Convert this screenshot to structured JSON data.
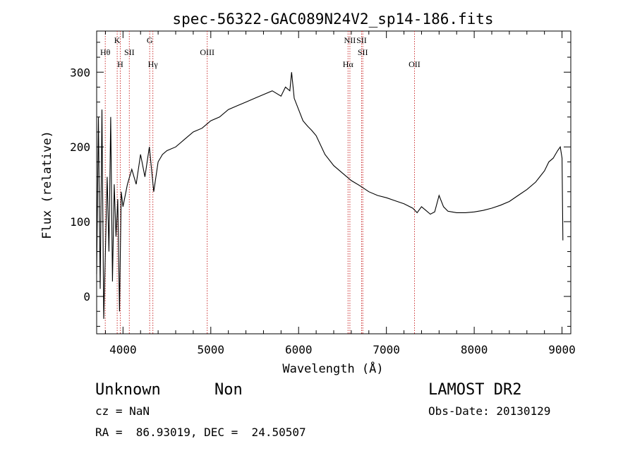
{
  "chart_data": {
    "type": "line",
    "title": "spec-56322-GAC089N24V2_sp14-186.fits",
    "xlabel": "Wavelength (Å)",
    "ylabel": "Flux (relative)",
    "xlim": [
      3700,
      9100
    ],
    "ylim": [
      -50,
      355
    ],
    "xticks": [
      4000,
      5000,
      6000,
      7000,
      8000,
      9000
    ],
    "yticks": [
      0,
      100,
      200,
      300
    ],
    "grid": false,
    "line_color": "#000000",
    "marker_color": "#cc3333",
    "series": [
      {
        "x": [
          3700,
          3720,
          3740,
          3760,
          3780,
          3800,
          3820,
          3840,
          3860,
          3880,
          3900,
          3920,
          3940,
          3960,
          3980,
          4000,
          4050,
          4100,
          4150,
          4200,
          4250,
          4300,
          4350,
          4400,
          4450,
          4500,
          4600,
          4700,
          4800,
          4900,
          5000,
          5100,
          5200,
          5300,
          5400,
          5500,
          5600,
          5700,
          5800,
          5850,
          5900,
          5920,
          5950,
          6000,
          6050,
          6100,
          6150,
          6200,
          6300,
          6400,
          6500,
          6600,
          6700,
          6800,
          6900,
          7000,
          7100,
          7200,
          7300,
          7350,
          7400,
          7450,
          7500,
          7550,
          7600,
          7650,
          7700,
          7800,
          7900,
          8000,
          8100,
          8200,
          8300,
          8400,
          8500,
          8600,
          8700,
          8800,
          8850,
          8900,
          8950,
          8980,
          9000,
          9010
        ],
        "y": [
          30,
          240,
          10,
          250,
          -30,
          60,
          160,
          60,
          240,
          20,
          150,
          80,
          130,
          -20,
          140,
          120,
          150,
          170,
          150,
          190,
          160,
          200,
          140,
          180,
          190,
          195,
          200,
          210,
          220,
          225,
          235,
          240,
          250,
          255,
          260,
          265,
          270,
          275,
          268,
          280,
          275,
          300,
          265,
          250,
          235,
          228,
          222,
          215,
          190,
          175,
          165,
          155,
          148,
          140,
          135,
          132,
          128,
          124,
          118,
          112,
          120,
          115,
          110,
          113,
          135,
          120,
          114,
          112,
          112,
          113,
          115,
          118,
          122,
          127,
          135,
          143,
          153,
          168,
          180,
          185,
          195,
          200,
          185,
          75
        ]
      }
    ]
  },
  "lines_top": [
    {
      "label": "K",
      "wave": 3934,
      "row": 1
    },
    {
      "label": "G",
      "wave": 4304,
      "row": 1
    },
    {
      "label": "NII",
      "wave": 6584,
      "row": 1
    },
    {
      "label": "SII",
      "wave": 6717,
      "row": 1
    },
    {
      "label": "Hθ",
      "wave": 3798,
      "row": 2
    },
    {
      "label": "SII",
      "wave": 4072,
      "row": 2
    },
    {
      "label": "OIII",
      "wave": 4959,
      "row": 2
    },
    {
      "label": "SII",
      "wave": 6731,
      "row": 2
    },
    {
      "label": "H",
      "wave": 3969,
      "row": 3
    },
    {
      "label": "Hγ",
      "wave": 4340,
      "row": 3
    },
    {
      "label": "Hα",
      "wave": 6563,
      "row": 3
    },
    {
      "label": "OII",
      "wave": 7320,
      "row": 3
    }
  ],
  "footer": {
    "object_type": "Unknown",
    "object_subtype": "Non",
    "survey": "LAMOST DR2",
    "cz": "cz = NaN",
    "obs_date": "Obs-Date: 20130129",
    "coords": "RA =  86.93019, DEC =  24.50507"
  }
}
